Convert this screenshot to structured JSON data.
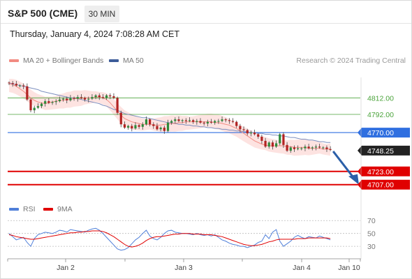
{
  "header": {
    "instrument": "S&P 500 (CME)",
    "interval": "30 MIN",
    "datetime": "Thursday, January 4, 2024 7:08:28 AM CET"
  },
  "legend": {
    "ma20": {
      "label": "MA 20 + Bollinger Bands",
      "color": "#f28b82"
    },
    "ma50": {
      "label": "MA 50",
      "color": "#3d5c99"
    },
    "rsi": {
      "label": "RSI",
      "color": "#4f7fd9"
    },
    "rsi_ma": {
      "label": "9MA",
      "color": "#e00000"
    }
  },
  "research": "Research © 2024 Trading Central",
  "chart_data": {
    "type": "candlestick",
    "price_range": [
      4700,
      4830
    ],
    "levels": [
      {
        "label": "4812.00",
        "value": 4812.0,
        "kind": "resistance",
        "color": "#4aa33a"
      },
      {
        "label": "4792.00",
        "value": 4792.0,
        "kind": "resistance",
        "color": "#4aa33a"
      },
      {
        "label": "4770.00",
        "value": 4770.0,
        "kind": "pivot",
        "color": "#2f6fe0"
      },
      {
        "label": "4748.25",
        "value": 4748.25,
        "kind": "last",
        "color": "#222222"
      },
      {
        "label": "4723.00",
        "value": 4723.0,
        "kind": "support",
        "color": "#e00000"
      },
      {
        "label": "4707.00",
        "value": 4707.0,
        "kind": "support",
        "color": "#e00000"
      }
    ],
    "forecast_arrow": {
      "from": 4749,
      "to": 4707,
      "direction": "down",
      "color": "#2b5fa8"
    },
    "x_tick_labels": [
      "Jan 2",
      "Jan 3",
      "Jan 4",
      "Jan 10"
    ],
    "closes": [
      4830,
      4829,
      4827,
      4827,
      4826,
      4810,
      4797,
      4800,
      4802,
      4805,
      4808,
      4806,
      4807,
      4808,
      4810,
      4811,
      4809,
      4812,
      4811,
      4813,
      4812,
      4810,
      4811,
      4813,
      4815,
      4813,
      4812,
      4815,
      4814,
      4812,
      4794,
      4780,
      4776,
      4778,
      4775,
      4779,
      4777,
      4780,
      4786,
      4780,
      4778,
      4774,
      4776,
      4772,
      4782,
      4784,
      4786,
      4784,
      4785,
      4784,
      4785,
      4783,
      4784,
      4782,
      4781,
      4783,
      4782,
      4784,
      4784,
      4786,
      4785,
      4784,
      4783,
      4778,
      4774,
      4773,
      4769,
      4770,
      4768,
      4765,
      4760,
      4753,
      4758,
      4753,
      4757,
      4768,
      4755,
      4748,
      4752,
      4750,
      4751,
      4751,
      4753,
      4751,
      4752,
      4753,
      4752,
      4752,
      4750,
      4749
    ],
    "ma50": [
      4830,
      4829,
      4828,
      4827,
      4826,
      4825,
      4824,
      4823,
      4822,
      4820,
      4819,
      4818,
      4817,
      4816,
      4815,
      4814,
      4813,
      4812,
      4812,
      4811,
      4810,
      4809,
      4808,
      4807,
      4806,
      4805,
      4803,
      4802,
      4800,
      4798,
      4797,
      4795,
      4793,
      4792,
      4791,
      4790,
      4789,
      4788,
      4788,
      4787,
      4786,
      4785,
      4784,
      4783,
      4782,
      4782,
      4781,
      4780,
      4780,
      4779,
      4779,
      4778,
      4778,
      4777,
      4777,
      4776,
      4776,
      4775,
      4775,
      4774,
      4774,
      4773,
      4773,
      4772,
      4772,
      4771,
      4771,
      4770,
      4770,
      4769,
      4769,
      4768,
      4768,
      4767,
      4767,
      4766,
      4766,
      4765,
      4764,
      4764,
      4763,
      4762,
      4762,
      4761,
      4761,
      4760,
      4759,
      4759,
      4758,
      4758
    ],
    "ma20": [
      4829,
      4828,
      4826,
      4823,
      4820,
      4816,
      4812,
      4809,
      4807,
      4806,
      4805,
      4806,
      4807,
      4808,
      4809,
      4809,
      4810,
      4810,
      4811,
      4811,
      4811,
      4812,
      4812,
      4812,
      4813,
      4813,
      4812,
      4810,
      4806,
      4801,
      4796,
      4791,
      4787,
      4785,
      4783,
      4782,
      4781,
      4780,
      4780,
      4780,
      4779,
      4779,
      4779,
      4780,
      4780,
      4781,
      4781,
      4782,
      4782,
      4783,
      4783,
      4783,
      4783,
      4783,
      4783,
      4783,
      4783,
      4782,
      4782,
      4781,
      4780,
      4779,
      4777,
      4775,
      4772,
      4769,
      4766,
      4763,
      4760,
      4758,
      4756,
      4755,
      4754,
      4754,
      4754,
      4754,
      4754,
      4753,
      4753,
      4752,
      4752,
      4752,
      4752,
      4751,
      4751,
      4751,
      4751,
      4750,
      4750,
      4750
    ],
    "rsi_range": [
      15,
      80
    ],
    "rsi_ticks": [
      70,
      50,
      30
    ],
    "rsi": [
      50,
      45,
      40,
      42,
      44,
      36,
      30,
      42,
      48,
      50,
      52,
      51,
      50,
      52,
      55,
      54,
      52,
      56,
      55,
      54,
      53,
      52,
      55,
      57,
      58,
      55,
      50,
      44,
      38,
      32,
      26,
      24,
      25,
      28,
      34,
      40,
      44,
      50,
      55,
      46,
      42,
      40,
      44,
      50,
      54,
      55,
      52,
      51,
      50,
      50,
      49,
      48,
      50,
      48,
      47,
      48,
      46,
      48,
      44,
      40,
      38,
      35,
      33,
      32,
      30,
      30,
      28,
      30,
      32,
      36,
      38,
      48,
      42,
      52,
      56,
      38,
      30,
      34,
      38,
      44,
      47,
      44,
      42,
      45,
      44,
      43,
      46,
      44,
      42,
      40
    ],
    "rsi_ma": [
      48,
      47,
      45,
      44,
      43,
      42,
      41,
      41,
      42,
      43,
      44,
      45,
      46,
      47,
      48,
      49,
      50,
      51,
      51,
      52,
      52,
      53,
      53,
      54,
      54,
      54,
      53,
      51,
      48,
      45,
      41,
      37,
      33,
      30,
      29,
      30,
      32,
      35,
      39,
      42,
      44,
      45,
      45,
      46,
      47,
      48,
      49,
      49,
      50,
      50,
      50,
      49,
      49,
      49,
      48,
      48,
      48,
      47,
      46,
      45,
      43,
      41,
      39,
      37,
      35,
      33,
      32,
      31,
      31,
      32,
      33,
      35,
      37,
      38,
      40,
      41,
      41,
      41,
      41,
      41,
      42,
      42,
      42,
      43,
      43,
      43,
      43,
      43,
      43,
      42
    ],
    "rsi_tick_labels": [
      "70",
      "50",
      "30"
    ]
  }
}
